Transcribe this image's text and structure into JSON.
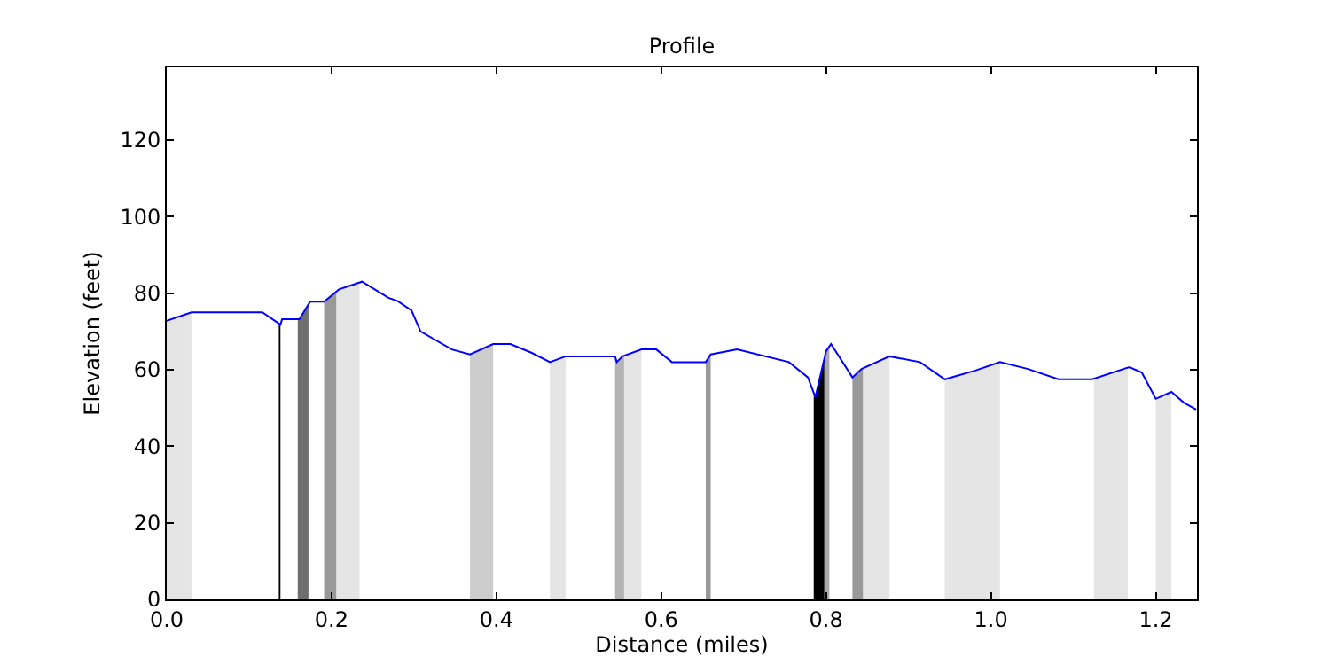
{
  "chart_data": {
    "type": "line",
    "title": "Profile",
    "xlabel": "Distance (miles)",
    "ylabel": "Elevation (feet)",
    "xlim": [
      0,
      1.25
    ],
    "ylim": [
      0,
      139
    ],
    "xticks": [
      {
        "value": 0,
        "label": "0.0"
      },
      {
        "value": 0.2,
        "label": "0.2"
      },
      {
        "value": 0.4,
        "label": "0.4"
      },
      {
        "value": 0.6,
        "label": "0.6"
      },
      {
        "value": 0.8,
        "label": "0.8"
      },
      {
        "value": 1.0,
        "label": "1.0"
      },
      {
        "value": 1.2,
        "label": "1.2"
      }
    ],
    "yticks": [
      0,
      20,
      40,
      60,
      80,
      100,
      120
    ],
    "grid": false,
    "series": [
      {
        "type": "area",
        "color": "#e5e5e5",
        "x": [
          0,
          0.03
        ],
        "values": [
          72.8,
          75
        ]
      },
      {
        "type": "area",
        "color": "#000000",
        "x": [
          0.136,
          0.138
        ],
        "values": [
          72.3,
          71.8
        ]
      },
      {
        "type": "area",
        "color": "#6e6e6e",
        "x": [
          0.159,
          0.161,
          0.172
        ],
        "values": [
          73.2,
          73.2,
          77.1
        ]
      },
      {
        "type": "area",
        "color": "#999999",
        "x": [
          0.191,
          0.206
        ],
        "values": [
          77.8,
          80.5
        ]
      },
      {
        "type": "area",
        "color": "#e5e5e5",
        "x": [
          0.206,
          0.209,
          0.234
        ],
        "values": [
          80.5,
          81,
          82.8
        ]
      },
      {
        "type": "area",
        "color": "#cccccc",
        "x": [
          0.368,
          0.396
        ],
        "values": [
          64,
          66.7
        ]
      },
      {
        "type": "area",
        "color": "#e5e5e5",
        "x": [
          0.465,
          0.484
        ],
        "values": [
          62,
          63.5
        ]
      },
      {
        "type": "area",
        "color": "#b3b3b3",
        "x": [
          0.544,
          0.546,
          0.553,
          0.555
        ],
        "values": [
          63.5,
          62,
          63.5,
          63.7
        ]
      },
      {
        "type": "area",
        "color": "#e5e5e5",
        "x": [
          0.555,
          0.576
        ],
        "values": [
          63.7,
          65.3
        ]
      },
      {
        "type": "area",
        "color": "#999999",
        "x": [
          0.654,
          0.66
        ],
        "values": [
          62,
          64
        ]
      },
      {
        "type": "area",
        "color": "#000000",
        "x": [
          0.785,
          0.787,
          0.798
        ],
        "values": [
          54,
          52.8,
          63.5
        ]
      },
      {
        "type": "area",
        "color": "#aaaaaa",
        "x": [
          0.798,
          0.8,
          0.804
        ],
        "values": [
          63.5,
          64.9,
          66.2
        ]
      },
      {
        "type": "area",
        "color": "#999999",
        "x": [
          0.832,
          0.843,
          0.845
        ],
        "values": [
          58,
          60.2,
          60.4
        ]
      },
      {
        "type": "area",
        "color": "#e5e5e5",
        "x": [
          0.845,
          0.877
        ],
        "values": [
          60.4,
          63.5
        ]
      },
      {
        "type": "area",
        "color": "#e5e5e5",
        "x": [
          0.944,
          0.981,
          1.011
        ],
        "values": [
          57.5,
          59.8,
          62
        ]
      },
      {
        "type": "area",
        "color": "#e5e5e5",
        "x": [
          1.125,
          1.166
        ],
        "values": [
          57.6,
          60.6
        ]
      },
      {
        "type": "area",
        "color": "#e5e5e5",
        "x": [
          1.2,
          1.219
        ],
        "values": [
          52.4,
          54.2
        ]
      },
      {
        "color": "#0000ff",
        "x": [
          0,
          0.03,
          0.116,
          0.138,
          0.14,
          0.161,
          0.174,
          0.191,
          0.209,
          0.237,
          0.269,
          0.28,
          0.297,
          0.308,
          0.346,
          0.368,
          0.396,
          0.417,
          0.443,
          0.465,
          0.484,
          0.544,
          0.546,
          0.553,
          0.576,
          0.594,
          0.613,
          0.654,
          0.66,
          0.692,
          0.755,
          0.778,
          0.787,
          0.8,
          0.806,
          0.832,
          0.843,
          0.877,
          0.914,
          0.944,
          0.981,
          1.011,
          1.045,
          1.082,
          1.123,
          1.168,
          1.183,
          1.2,
          1.219,
          1.234,
          1.249
        ],
        "values": [
          72.8,
          75,
          75,
          71.8,
          73.2,
          73.2,
          77.8,
          77.8,
          81,
          83,
          78.8,
          78,
          75.5,
          70,
          65.3,
          64,
          66.7,
          66.7,
          64.4,
          62,
          63.5,
          63.5,
          62,
          63.5,
          65.3,
          65.3,
          62,
          62,
          64,
          65.3,
          62,
          58,
          52.8,
          64.9,
          66.7,
          58,
          60.2,
          63.5,
          62,
          57.5,
          59.8,
          62,
          60.2,
          57.5,
          57.5,
          60.7,
          59.3,
          52.4,
          54.2,
          51.4,
          49.6
        ]
      }
    ]
  }
}
